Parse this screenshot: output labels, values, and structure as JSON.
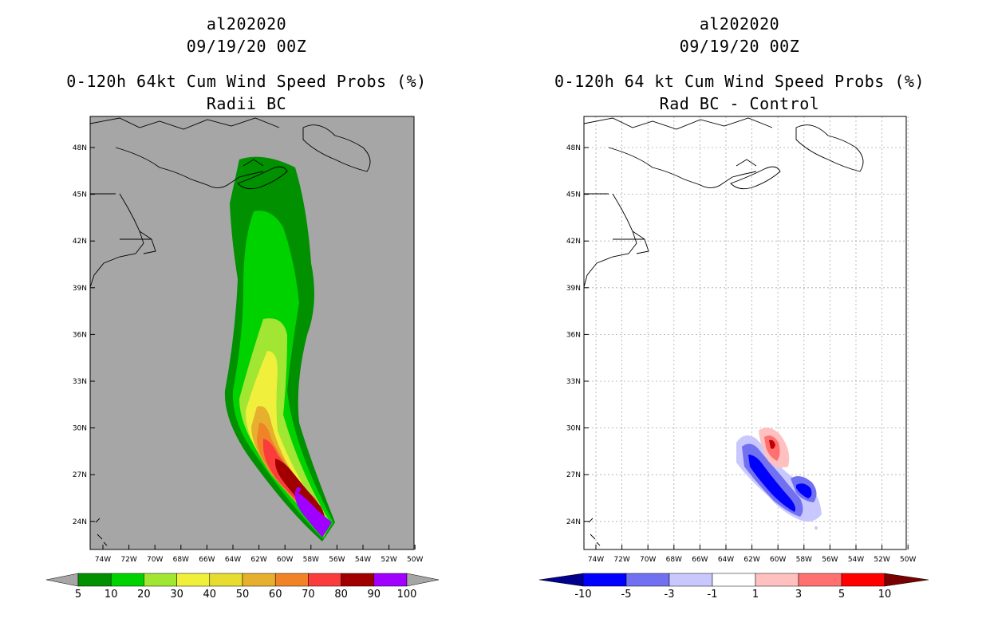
{
  "left": {
    "storm_id": "al202020",
    "datetime": "09/19/20 00Z",
    "title": "0-120h 64kt Cum Wind Speed Probs (%)",
    "subtitle": "Radii BC",
    "colorbar": {
      "labels": [
        "5",
        "10",
        "20",
        "30",
        "40",
        "50",
        "60",
        "70",
        "80",
        "90",
        "100"
      ],
      "colors": [
        "#009000",
        "#00d200",
        "#a0e632",
        "#f0f03c",
        "#e6dc32",
        "#e6af2d",
        "#f08228",
        "#fa3c3c",
        "#a00000",
        "#a000ff"
      ],
      "extend_color": "#a6a6a6"
    }
  },
  "right": {
    "storm_id": "al202020",
    "datetime": "09/19/20 00Z",
    "title": "0-120h 64 kt Cum Wind Speed Probs (%)",
    "subtitle": "Rad BC - Control",
    "colorbar": {
      "labels": [
        "-10",
        "-5",
        "-3",
        "-1",
        "1",
        "3",
        "5",
        "10"
      ],
      "colors": [
        "#0000ff",
        "#7070f0",
        "#c8c8ff",
        "#ffffff",
        "#ffc0c0",
        "#ff7070",
        "#ff0000"
      ],
      "low_color": "#00008c",
      "high_color": "#780000"
    }
  },
  "map": {
    "lat_labels": [
      "48N",
      "45N",
      "42N",
      "39N",
      "36N",
      "33N",
      "30N",
      "27N",
      "24N"
    ],
    "lon_labels": [
      "74W",
      "72W",
      "70W",
      "68W",
      "66W",
      "64W",
      "62W",
      "60W",
      "58W",
      "56W",
      "54W",
      "52W",
      "50W"
    ]
  }
}
